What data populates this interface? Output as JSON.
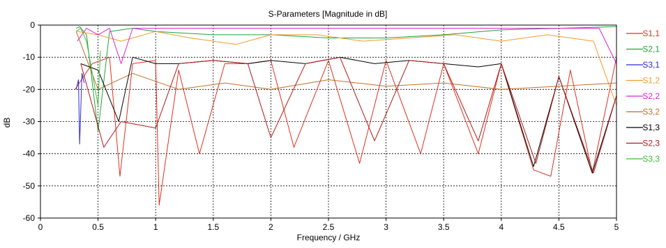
{
  "chart_data": {
    "type": "line",
    "title": "S-Parameters [Magnitude in dB]",
    "xlabel": "Frequency / GHz",
    "ylabel": "dB",
    "xlim": [
      0,
      5
    ],
    "ylim": [
      -60,
      0
    ],
    "xticks": [
      "0",
      "0.5",
      "1",
      "1.5",
      "2",
      "2.5",
      "3",
      "3.5",
      "4",
      "4.5",
      "5"
    ],
    "yticks": [
      "0",
      "-10",
      "-20",
      "-30",
      "-40",
      "-50",
      "-60"
    ],
    "grid": true,
    "legend_position": "right",
    "series": [
      {
        "name": "S1,1",
        "color": "#e0301e",
        "x": [
          0.3,
          0.45,
          0.6,
          0.69,
          0.8,
          1.0,
          1.03,
          1.2,
          1.38,
          1.6,
          1.8,
          2.0,
          2.2,
          2.5,
          2.77,
          3.0,
          3.3,
          3.5,
          3.8,
          4.0,
          4.28,
          4.43,
          4.6,
          4.79,
          5.0
        ],
        "y": [
          -20,
          -12,
          -10,
          -47,
          -12,
          -11,
          -56,
          -14,
          -40,
          -12,
          -12,
          -11,
          -38,
          -11,
          -43,
          -11,
          -40,
          -12,
          -40,
          -12,
          -45,
          -47,
          -14,
          -46,
          -10
        ]
      },
      {
        "name": "S2,1",
        "color": "#22a23a",
        "x": [
          0.31,
          0.34,
          0.4,
          0.5,
          0.6,
          0.8,
          1.0,
          1.5,
          2.0,
          2.5,
          3.0,
          3.5,
          4.0,
          4.5,
          5.0
        ],
        "y": [
          -1,
          -0.5,
          -3,
          -33,
          -2,
          -1,
          -2,
          -3,
          -3,
          -4,
          -4,
          -3,
          -1.5,
          -1,
          -0.5
        ]
      },
      {
        "name": "S3,1",
        "color": "#2a2ad4",
        "x": [
          0.31,
          0.33,
          0.34,
          0.36,
          0.38
        ],
        "y": [
          -20,
          -17,
          -37,
          -15,
          -18
        ]
      },
      {
        "name": "S1,2",
        "color": "#f59a2a",
        "x": [
          0.32,
          0.5,
          0.7,
          1.0,
          1.3,
          1.7,
          2.0,
          2.4,
          2.8,
          3.2,
          3.6,
          4.0,
          4.4,
          4.8,
          5.0
        ],
        "y": [
          -2,
          -3,
          -5,
          -2,
          -4,
          -6,
          -3,
          -3,
          -5,
          -4,
          -3,
          -5,
          -3,
          -5,
          -25
        ]
      },
      {
        "name": "S2,2",
        "color": "#e020d8",
        "x": [
          0.32,
          0.4,
          0.5,
          0.6,
          0.7,
          0.8,
          1.0,
          1.5,
          2.0,
          2.5,
          3.0,
          3.5,
          4.0,
          4.5,
          4.85,
          5.0
        ],
        "y": [
          -5,
          -1,
          -3,
          -1,
          -12,
          -1,
          -1,
          -1,
          -1,
          -1,
          -1,
          -1,
          -1,
          -1,
          -1,
          -12
        ]
      },
      {
        "name": "S3,2",
        "color": "#c0702a",
        "x": [
          0.31,
          0.5,
          0.8,
          1.2,
          1.6,
          2.0,
          2.5,
          3.0,
          3.5,
          4.0,
          4.5,
          5.0
        ],
        "y": [
          -2,
          -20,
          -15,
          -20,
          -18,
          -20,
          -17,
          -19,
          -18,
          -20,
          -19,
          -18
        ]
      },
      {
        "name": "S1,3",
        "color": "#000000",
        "x": [
          0.35,
          0.5,
          0.68,
          0.8,
          1.0,
          1.2,
          1.5,
          1.8,
          2.0,
          2.3,
          2.6,
          2.9,
          3.2,
          3.5,
          3.8,
          4.0,
          4.28,
          4.5,
          4.79,
          5.0
        ],
        "y": [
          -12,
          -14,
          -30,
          -10,
          -12,
          -12,
          -11,
          -12,
          -11,
          -12,
          -10,
          -12,
          -11,
          -12,
          -13,
          -12,
          -44,
          -16,
          -46,
          -22
        ]
      },
      {
        "name": "S2,3",
        "color": "#b01818",
        "x": [
          0.35,
          0.55,
          0.7,
          1.0,
          1.2,
          1.5,
          1.8,
          2.0,
          2.3,
          2.6,
          2.9,
          3.2,
          3.5,
          3.8,
          4.0,
          4.3,
          4.5,
          4.8,
          5.0
        ],
        "y": [
          -12,
          -38,
          -30,
          -32,
          -12,
          -11,
          -12,
          -35,
          -12,
          -10,
          -36,
          -11,
          -12,
          -36,
          -12,
          -43,
          -16,
          -46,
          -22
        ]
      },
      {
        "name": "S3,3",
        "color": "#3cb83c",
        "x": [
          0.31,
          0.35,
          0.4,
          0.5,
          0.52
        ],
        "y": [
          -2,
          -1,
          -5,
          -25,
          -8
        ]
      }
    ]
  }
}
